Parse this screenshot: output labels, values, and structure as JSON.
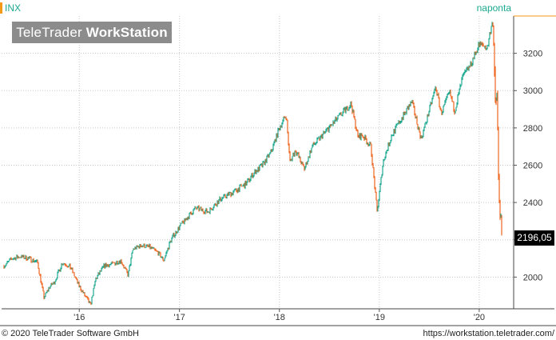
{
  "header": {
    "symbol": "INX",
    "period": "naponta"
  },
  "logo": {
    "light": "TeleTrader",
    "bold": "WorkStation"
  },
  "last_price": "2196,05",
  "footer": {
    "copyright": "© 2020 TeleTrader Software GmbH",
    "url": "https://workstation.teletrader.com/"
  },
  "colors": {
    "up": "#1aa890",
    "down": "#f0641e",
    "accent": "#f39a1a",
    "grid": "#c8c8c8"
  },
  "chart_data": {
    "type": "line",
    "title": "",
    "xlabel": "",
    "ylabel": "",
    "ylim": [
      1830,
      3400
    ],
    "y_ticks": [
      2000,
      2200,
      2400,
      2600,
      2800,
      3000,
      3200
    ],
    "y_tick_labels": [
      "2000",
      "2200",
      "2400",
      "2600",
      "2800",
      "3000",
      "3200"
    ],
    "x_ticks": [
      "2016",
      "2017",
      "2018",
      "2019",
      "2020"
    ],
    "x_tick_labels": [
      "'16",
      "'17",
      "'18",
      "'19",
      "'20"
    ],
    "x_range": [
      "2015-04-01",
      "2020-03-23"
    ],
    "grid": true,
    "series": [
      {
        "x": [
          "2015-04-01",
          "2015-05-01",
          "2015-06-01",
          "2015-07-01",
          "2015-08-01",
          "2015-08-25",
          "2015-09-15",
          "2015-10-01",
          "2015-11-01",
          "2015-12-01",
          "2016-01-01",
          "2016-02-11",
          "2016-03-01",
          "2016-04-01",
          "2016-05-01",
          "2016-06-01",
          "2016-06-27",
          "2016-07-15",
          "2016-08-15",
          "2016-09-15",
          "2016-10-15",
          "2016-11-04",
          "2016-12-01",
          "2017-01-01",
          "2017-03-01",
          "2017-04-15",
          "2017-06-01",
          "2017-08-01",
          "2017-09-01",
          "2017-10-01",
          "2017-11-01",
          "2017-12-01",
          "2018-01-01",
          "2018-01-26",
          "2018-02-08",
          "2018-03-01",
          "2018-04-02",
          "2018-05-01",
          "2018-06-01",
          "2018-07-01",
          "2018-08-01",
          "2018-09-20",
          "2018-10-15",
          "2018-11-01",
          "2018-12-01",
          "2018-12-24",
          "2019-01-15",
          "2019-02-15",
          "2019-03-15",
          "2019-04-30",
          "2019-06-03",
          "2019-07-26",
          "2019-08-15",
          "2019-09-15",
          "2019-10-03",
          "2019-11-01",
          "2019-12-01",
          "2020-01-01",
          "2020-01-31",
          "2020-02-19",
          "2020-02-28",
          "2020-03-06",
          "2020-03-12",
          "2020-03-16",
          "2020-03-23"
        ],
        "y": [
          2060,
          2100,
          2110,
          2100,
          2080,
          1890,
          1950,
          1970,
          2080,
          2050,
          1950,
          1850,
          1990,
          2060,
          2070,
          2090,
          2010,
          2150,
          2170,
          2160,
          2130,
          2090,
          2200,
          2270,
          2370,
          2350,
          2420,
          2470,
          2500,
          2560,
          2600,
          2670,
          2800,
          2870,
          2620,
          2680,
          2580,
          2700,
          2750,
          2800,
          2850,
          2930,
          2750,
          2760,
          2700,
          2350,
          2620,
          2760,
          2830,
          2940,
          2740,
          3020,
          2880,
          2990,
          2890,
          3070,
          3140,
          3250,
          3230,
          3390,
          2950,
          2970,
          2480,
          2390,
          2196
        ]
      }
    ]
  }
}
